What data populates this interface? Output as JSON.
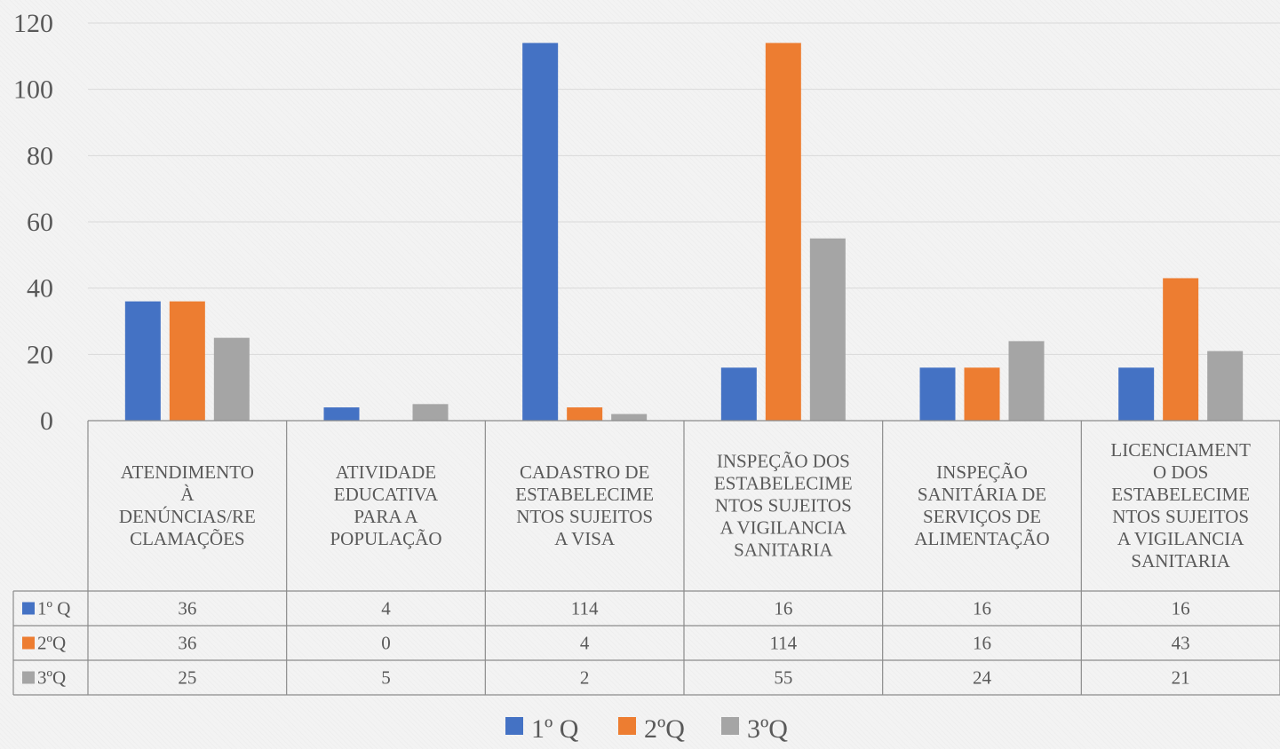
{
  "chart_data": {
    "type": "bar",
    "categories": [
      "ATENDIMENTO À DENÚNCIAS/RECLAMAÇÕES",
      "ATIVIDADE EDUCATIVA PARA A POPULAÇÃO",
      "CADASTRO DE ESTABELECIMENTOS SUJEITOS A VISA",
      "INSPEÇÃO DOS ESTABELECIMENTOS SUJEITOS A VIGILANCIA SANITARIA",
      "INSPEÇÃO SANITÁRIA DE SERVIÇOS DE ALIMENTAÇÃO",
      "LICENCIAMENTO DOS ESTABELECIMENTOS SUJEITOS A VIGILANCIA SANITARIA"
    ],
    "category_lines": [
      [
        "ATENDIMENTO",
        "À",
        "DENÚNCIAS/RE",
        "CLAMAÇÕES"
      ],
      [
        "ATIVIDADE",
        "EDUCATIVA",
        "PARA A",
        "POPULAÇÃO"
      ],
      [
        "CADASTRO DE",
        "ESTABELECIME",
        "NTOS SUJEITOS",
        "A VISA"
      ],
      [
        "INSPEÇÃO DOS",
        "ESTABELECIME",
        "NTOS SUJEITOS",
        "A VIGILANCIA",
        "SANITARIA"
      ],
      [
        "INSPEÇÃO",
        "SANITÁRIA DE",
        "SERVIÇOS DE",
        "ALIMENTAÇÃO"
      ],
      [
        "LICENCIAMENT",
        "O DOS",
        "ESTABELECIME",
        "NTOS SUJEITOS",
        "A VIGILANCIA",
        "SANITARIA"
      ]
    ],
    "series": [
      {
        "name": "1º Q",
        "color": "#4472c4",
        "values": [
          36,
          4,
          114,
          16,
          16,
          16
        ]
      },
      {
        "name": "2ºQ",
        "color": "#ed7d31",
        "values": [
          36,
          0,
          4,
          114,
          16,
          43
        ]
      },
      {
        "name": "3ºQ",
        "color": "#a5a5a5",
        "values": [
          25,
          5,
          2,
          55,
          24,
          21
        ]
      }
    ],
    "ylim": [
      0,
      120
    ],
    "yticks": [
      "0",
      "20",
      "40",
      "60",
      "80",
      "100",
      "120"
    ],
    "grid": true,
    "legend": "bottom",
    "data_table": true
  }
}
